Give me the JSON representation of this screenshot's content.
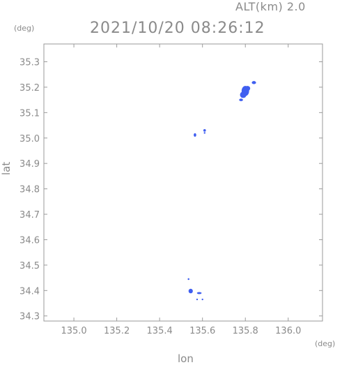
{
  "header": {
    "altitude_label": "ALT(km) 2.0",
    "datetime": "2021/10/20 08:26:12"
  },
  "chart_data": {
    "type": "scatter",
    "x_unit": "(deg)",
    "y_unit": "(deg)",
    "xlabel": "lon",
    "ylabel": "lat",
    "xlim": [
      134.86,
      136.16
    ],
    "ylim": [
      34.28,
      35.37
    ],
    "xticks": [
      135.0,
      135.2,
      135.4,
      135.6,
      135.8,
      136.0
    ],
    "yticks": [
      34.3,
      34.4,
      34.5,
      34.6,
      34.7,
      34.8,
      34.9,
      35.0,
      35.1,
      35.2,
      35.3
    ],
    "xtick_labels": [
      "135.0",
      "135.2",
      "135.4",
      "135.6",
      "135.8",
      "136.0"
    ],
    "ytick_labels": [
      "34.3",
      "34.4",
      "34.5",
      "34.6",
      "34.7",
      "34.8",
      "34.9",
      "35.0",
      "35.1",
      "35.2",
      "35.3"
    ],
    "point_color": "#3f5ef0",
    "points": [
      {
        "lon": 135.8,
        "lat": 35.185,
        "w": 0.035,
        "h": 0.04
      },
      {
        "lon": 135.79,
        "lat": 35.17,
        "w": 0.03,
        "h": 0.025
      },
      {
        "lon": 135.81,
        "lat": 35.195,
        "w": 0.025,
        "h": 0.02
      },
      {
        "lon": 135.84,
        "lat": 35.218,
        "w": 0.02,
        "h": 0.012
      },
      {
        "lon": 135.78,
        "lat": 35.15,
        "w": 0.018,
        "h": 0.01
      },
      {
        "lon": 135.565,
        "lat": 35.012,
        "w": 0.012,
        "h": 0.014
      },
      {
        "lon": 135.61,
        "lat": 35.03,
        "w": 0.012,
        "h": 0.01
      },
      {
        "lon": 135.61,
        "lat": 35.02,
        "w": 0.008,
        "h": 0.006
      },
      {
        "lon": 135.535,
        "lat": 34.445,
        "w": 0.008,
        "h": 0.007
      },
      {
        "lon": 135.545,
        "lat": 34.398,
        "w": 0.02,
        "h": 0.018
      },
      {
        "lon": 135.585,
        "lat": 34.39,
        "w": 0.022,
        "h": 0.008
      },
      {
        "lon": 135.575,
        "lat": 34.365,
        "w": 0.006,
        "h": 0.006
      },
      {
        "lon": 135.6,
        "lat": 34.365,
        "w": 0.006,
        "h": 0.005
      }
    ]
  }
}
